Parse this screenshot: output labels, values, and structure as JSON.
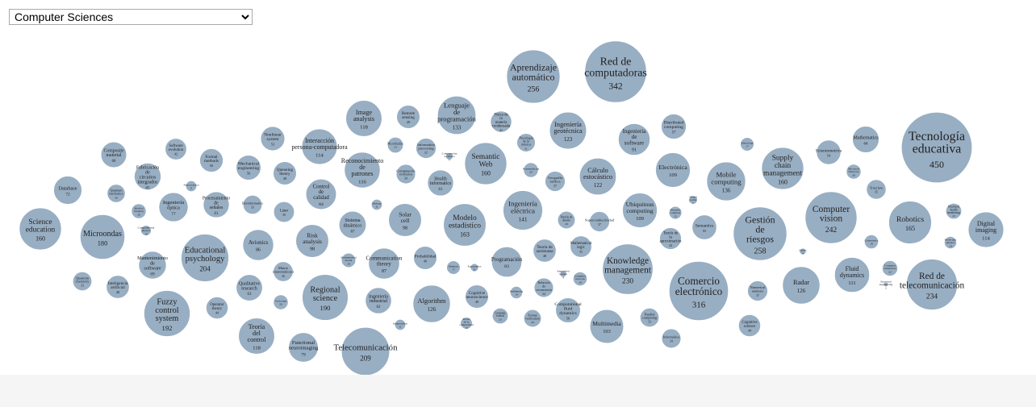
{
  "selector": {
    "selected": "Computer Sciences",
    "options": [
      "Computer Sciences"
    ]
  },
  "colors": {
    "bubble_fill": "#98aec3",
    "bubble_stroke": "#ffffff",
    "text": "#222222"
  },
  "chart_data": {
    "type": "bubble",
    "nodes": [
      {
        "label": "Red de computadoras",
        "value": 342
      },
      {
        "label": "Aprendizaje automático",
        "value": 256
      },
      {
        "label": "Lenguaje de programación",
        "value": 133
      },
      {
        "label": "Física de la materia condensada",
        "value": 41
      },
      {
        "label": "Image analysis",
        "value": 118
      },
      {
        "label": "Remote sensing",
        "value": 49
      },
      {
        "label": "Microfluidics",
        "value": 23
      },
      {
        "label": "Information processing",
        "value": 37
      },
      {
        "label": "Computación evolutiva",
        "value": 5
      },
      {
        "label": "Psicología de la música",
        "value": 31
      },
      {
        "label": "Ingeniería geotécnica",
        "value": 123
      },
      {
        "label": "Distributed computing",
        "value": 57
      },
      {
        "label": "Ingeniería de software",
        "value": 91
      },
      {
        "label": "Tecnología educativa",
        "value": 450
      },
      {
        "label": "Mathematics",
        "value": 64
      },
      {
        "label": "Scientometrics",
        "value": 54
      },
      {
        "label": "Metrology",
        "value": 17
      },
      {
        "label": "Supply chain management",
        "value": 160
      },
      {
        "label": "Nonlinear system",
        "value": 53
      },
      {
        "label": "Interacción persona-computadora",
        "value": 114
      },
      {
        "label": "Reconocimiento de patrones",
        "value": 116
      },
      {
        "label": "Computación evolutiva",
        "value": 34
      },
      {
        "label": "Semantic Web",
        "value": 160
      },
      {
        "label": "Nanomedicine",
        "value": 20
      },
      {
        "label": "Health informatics",
        "value": 61
      },
      {
        "label": "Geografía médica",
        "value": 37
      },
      {
        "label": "Cálculo estocástico",
        "value": 122
      },
      {
        "label": "Electrónica",
        "value": 109
      },
      {
        "label": "Mobile computing",
        "value": 136
      },
      {
        "label": "Microsoft Windows",
        "value": 20
      },
      {
        "label": "Trust law",
        "value": 35
      },
      {
        "label": "Composite material",
        "value": 60
      },
      {
        "label": "Software evolution",
        "value": 42
      },
      {
        "label": "Formal methods",
        "value": 50
      },
      {
        "label": "Mechanical engineering",
        "value": 56
      },
      {
        "label": "Queueing theory",
        "value": 49
      },
      {
        "label": "Fabricación de circuitos integrados",
        "value": 65
      },
      {
        "label": "Quantum mechanics",
        "value": 30
      },
      {
        "label": "Database",
        "value": 72
      },
      {
        "label": "Control de calidad",
        "value": 84
      },
      {
        "label": "Neuroscience",
        "value": 11
      },
      {
        "label": "Bioinformatics",
        "value": 33
      },
      {
        "label": "Ingeniería óptica",
        "value": 77
      },
      {
        "label": "Procesamiento de señales",
        "value": 61
      },
      {
        "label": "Medical imaging",
        "value": 20
      },
      {
        "label": "Láser",
        "value": 39
      },
      {
        "label": "Biology",
        "value": 11
      },
      {
        "label": "Solar cell",
        "value": 98
      },
      {
        "label": "Modelo estadístico",
        "value": 163
      },
      {
        "label": "Ingeniería eléctrica",
        "value": 141
      },
      {
        "label": "Patrón de diseño",
        "value": 28
      },
      {
        "label": "Superconductividad",
        "value": 37
      },
      {
        "label": "Ubiquitous computing",
        "value": 109
      },
      {
        "label": "Teoría de la aproximación",
        "value": 43
      },
      {
        "label": "Wearable computer",
        "value": 15
      },
      {
        "label": "Virtual reality",
        "value": 7
      },
      {
        "label": "Semantics",
        "value": 55
      },
      {
        "label": "Gestión de riesgos",
        "value": 258
      },
      {
        "label": "Computer vision",
        "value": 242
      },
      {
        "label": "Robotics",
        "value": 165
      },
      {
        "label": "Digital imaging",
        "value": 114
      },
      {
        "label": "Structural health monitoring",
        "value": 23
      },
      {
        "label": "Molecular physics",
        "value": 14
      },
      {
        "label": "Science education",
        "value": 160
      },
      {
        "label": "Microondas",
        "value": 180
      },
      {
        "label": "Computational physics",
        "value": 10
      },
      {
        "label": "Educational psychology",
        "value": 204
      },
      {
        "label": "Avionics",
        "value": 86
      },
      {
        "label": "Risk analysis",
        "value": 98
      },
      {
        "label": "Sistema dinámico",
        "value": 67
      },
      {
        "label": "Mathematical model",
        "value": 19
      },
      {
        "label": "Communication theory",
        "value": 87
      },
      {
        "label": "Probabilidad",
        "value": 49
      },
      {
        "label": "Teoría de autómatas",
        "value": 48
      },
      {
        "label": "Mathematical logic",
        "value": 42
      },
      {
        "label": "Knowledge management",
        "value": 230
      },
      {
        "label": "Comercio electrónico",
        "value": 316
      },
      {
        "label": "Radar",
        "value": 126
      },
      {
        "label": "Fluid dynamics",
        "value": 111
      },
      {
        "label": "Red de telecomunicación",
        "value": 234
      },
      {
        "label": "Cybernetics",
        "value": 18
      },
      {
        "label": "Computer simulation",
        "value": 22
      },
      {
        "label": "Optics",
        "value": 4
      },
      {
        "label": "Mantenimiento de software",
        "value": 69
      },
      {
        "label": "Quantum chemistry",
        "value": 33
      },
      {
        "label": "Inteligencia artificial",
        "value": 48
      },
      {
        "label": "Qualitative research",
        "value": 63
      },
      {
        "label": "Matriz (matemáticas)",
        "value": 36
      },
      {
        "label": "Regional science",
        "value": 190
      },
      {
        "label": "Ingeniería industrial",
        "value": 62
      },
      {
        "label": "Algorithm",
        "value": 126
      },
      {
        "label": "Memory",
        "value": 17
      },
      {
        "label": "Programación",
        "value": 83
      },
      {
        "label": "Ergonomics",
        "value": 6
      },
      {
        "label": "Cognitive neuroscience",
        "value": 49
      },
      {
        "label": "Multimedia",
        "value": 14
      },
      {
        "label": "Relación de recurrencia",
        "value": 34
      },
      {
        "label": "Embedded system",
        "value": 4
      },
      {
        "label": "Computer network",
        "value": 18
      },
      {
        "label": "Computational fluid dynamics",
        "value": 56
      },
      {
        "label": "Numerical analysis",
        "value": 37
      },
      {
        "label": "Fuzzy control system",
        "value": 192
      },
      {
        "label": "Operator theory",
        "value": 44
      },
      {
        "label": "Sociology",
        "value": 20
      },
      {
        "label": "Teoría del control",
        "value": 118
      },
      {
        "label": "Functional neuroimaging",
        "value": 79
      },
      {
        "label": "Telecomunicación",
        "value": 209
      },
      {
        "label": "Interpolation",
        "value": 11
      },
      {
        "label": "Teoría de la complejidad",
        "value": 13
      },
      {
        "label": "Lenguaje formal",
        "value": 23
      },
      {
        "label": "Formal verification",
        "value": 28
      },
      {
        "label": "Multimedia",
        "value": 103
      },
      {
        "label": "Parallel computing",
        "value": 33
      },
      {
        "label": "Informática",
        "value": 34
      },
      {
        "label": "Cognitive science",
        "value": 44
      },
      {
        "label": "Structural engineering",
        "value": 2
      }
    ]
  }
}
